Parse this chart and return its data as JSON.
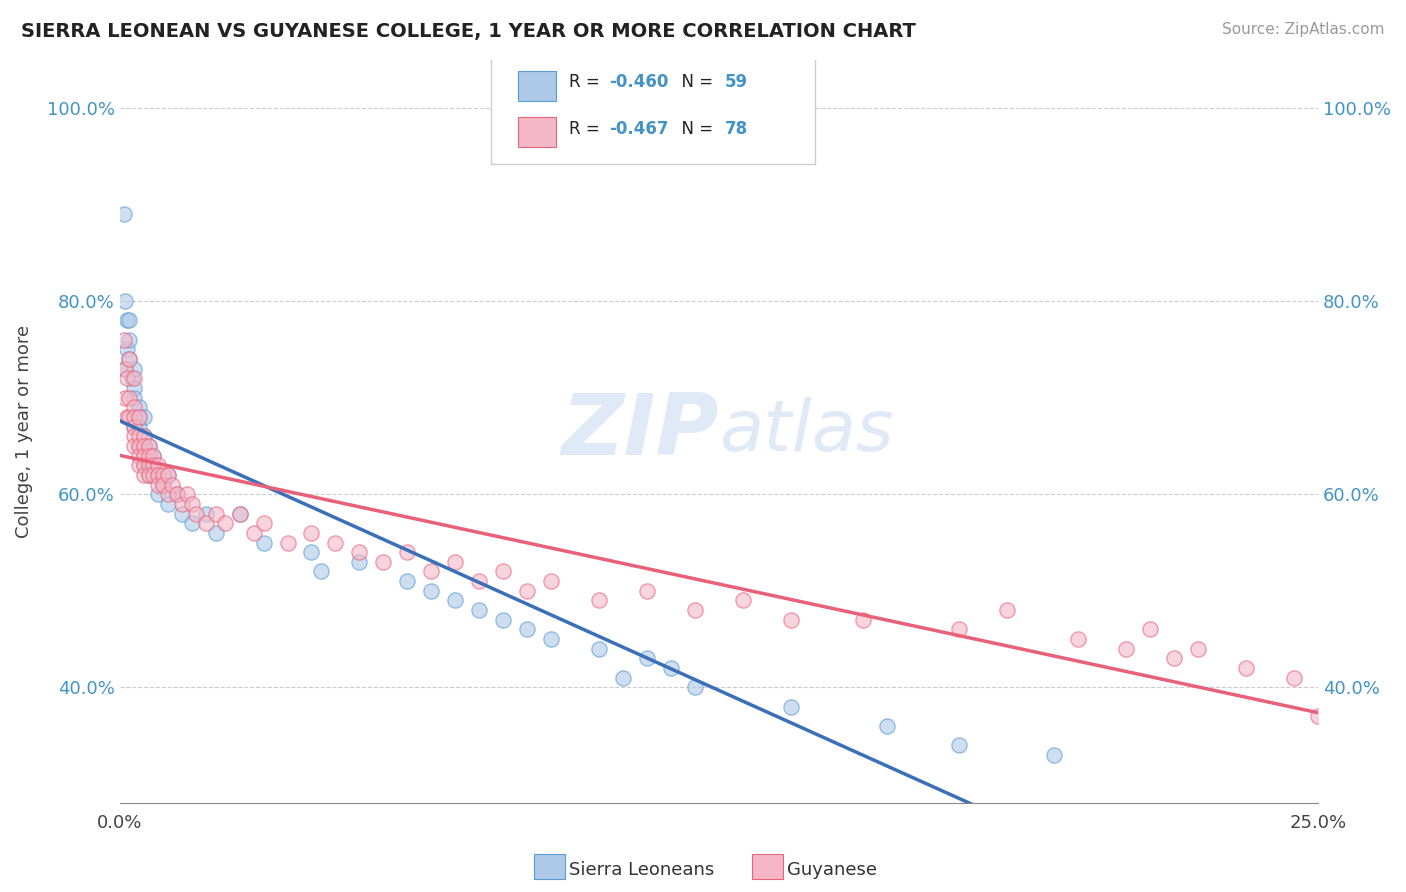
{
  "title": "SIERRA LEONEAN VS GUYANESE COLLEGE, 1 YEAR OR MORE CORRELATION CHART",
  "source_text": "Source: ZipAtlas.com",
  "ylabel": "College, 1 year or more",
  "xlim": [
    0.0,
    0.25
  ],
  "ylim": [
    0.28,
    1.05
  ],
  "y_ticks": [
    0.4,
    0.6,
    0.8,
    1.0
  ],
  "y_tick_labels": [
    "40.0%",
    "60.0%",
    "80.0%",
    "100.0%"
  ],
  "x_ticks": [
    0.0,
    0.25
  ],
  "x_tick_labels": [
    "0.0%",
    "25.0%"
  ],
  "legend_sierra": "Sierra Leoneans",
  "legend_guyanese": "Guyanese",
  "color_blue_fill": "#aec9e8",
  "color_blue_edge": "#5b9bd5",
  "color_pink_fill": "#f4b8c8",
  "color_pink_edge": "#e8647a",
  "color_blue_line": "#3a6fba",
  "color_pink_line": "#e8607a",
  "color_dash": "#aaaaaa",
  "color_grid": "#cccccc",
  "color_ytick": "#4393c6",
  "watermark_color": "#c5d9f0",
  "sierra_x": [
    0.0008,
    0.001,
    0.001,
    0.0015,
    0.0015,
    0.002,
    0.002,
    0.002,
    0.0025,
    0.003,
    0.003,
    0.003,
    0.003,
    0.003,
    0.004,
    0.004,
    0.004,
    0.004,
    0.005,
    0.005,
    0.005,
    0.005,
    0.005,
    0.006,
    0.006,
    0.006,
    0.007,
    0.007,
    0.008,
    0.008,
    0.009,
    0.01,
    0.01,
    0.012,
    0.013,
    0.015,
    0.018,
    0.02,
    0.025,
    0.03,
    0.04,
    0.042,
    0.05,
    0.06,
    0.065,
    0.07,
    0.075,
    0.08,
    0.085,
    0.09,
    0.1,
    0.105,
    0.11,
    0.115,
    0.12,
    0.14,
    0.16,
    0.175,
    0.195
  ],
  "sierra_y": [
    0.89,
    0.73,
    0.8,
    0.75,
    0.78,
    0.78,
    0.74,
    0.76,
    0.72,
    0.73,
    0.71,
    0.7,
    0.68,
    0.67,
    0.69,
    0.68,
    0.65,
    0.67,
    0.68,
    0.66,
    0.65,
    0.64,
    0.63,
    0.65,
    0.63,
    0.62,
    0.64,
    0.62,
    0.62,
    0.6,
    0.61,
    0.62,
    0.59,
    0.6,
    0.58,
    0.57,
    0.58,
    0.56,
    0.58,
    0.55,
    0.54,
    0.52,
    0.53,
    0.51,
    0.5,
    0.49,
    0.48,
    0.47,
    0.46,
    0.45,
    0.44,
    0.41,
    0.43,
    0.42,
    0.4,
    0.38,
    0.36,
    0.34,
    0.33
  ],
  "guyanese_x": [
    0.0008,
    0.001,
    0.001,
    0.0015,
    0.0015,
    0.002,
    0.002,
    0.002,
    0.003,
    0.003,
    0.003,
    0.003,
    0.003,
    0.003,
    0.004,
    0.004,
    0.004,
    0.004,
    0.004,
    0.005,
    0.005,
    0.005,
    0.005,
    0.005,
    0.006,
    0.006,
    0.006,
    0.006,
    0.007,
    0.007,
    0.007,
    0.008,
    0.008,
    0.008,
    0.009,
    0.009,
    0.01,
    0.01,
    0.011,
    0.012,
    0.013,
    0.014,
    0.015,
    0.016,
    0.018,
    0.02,
    0.022,
    0.025,
    0.028,
    0.03,
    0.035,
    0.04,
    0.045,
    0.05,
    0.055,
    0.06,
    0.065,
    0.07,
    0.075,
    0.08,
    0.085,
    0.09,
    0.1,
    0.11,
    0.12,
    0.13,
    0.14,
    0.155,
    0.175,
    0.185,
    0.2,
    0.21,
    0.215,
    0.22,
    0.225,
    0.235,
    0.245,
    0.25
  ],
  "guyanese_y": [
    0.76,
    0.73,
    0.7,
    0.68,
    0.72,
    0.74,
    0.7,
    0.68,
    0.72,
    0.69,
    0.68,
    0.67,
    0.66,
    0.65,
    0.68,
    0.66,
    0.65,
    0.64,
    0.63,
    0.66,
    0.65,
    0.64,
    0.63,
    0.62,
    0.65,
    0.64,
    0.63,
    0.62,
    0.64,
    0.63,
    0.62,
    0.63,
    0.62,
    0.61,
    0.62,
    0.61,
    0.62,
    0.6,
    0.61,
    0.6,
    0.59,
    0.6,
    0.59,
    0.58,
    0.57,
    0.58,
    0.57,
    0.58,
    0.56,
    0.57,
    0.55,
    0.56,
    0.55,
    0.54,
    0.53,
    0.54,
    0.52,
    0.53,
    0.51,
    0.52,
    0.5,
    0.51,
    0.49,
    0.5,
    0.48,
    0.49,
    0.47,
    0.47,
    0.46,
    0.48,
    0.45,
    0.44,
    0.46,
    0.43,
    0.44,
    0.42,
    0.41,
    0.37
  ]
}
